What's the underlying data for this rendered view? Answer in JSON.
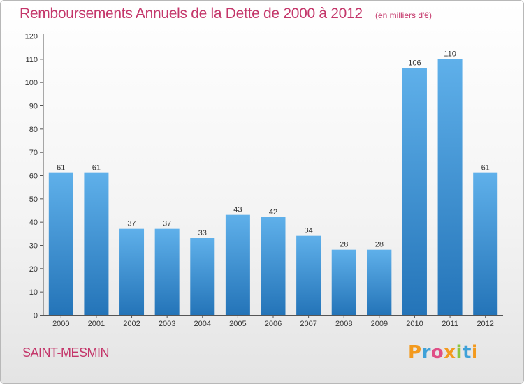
{
  "chart_data": {
    "type": "bar",
    "title": "Remboursements Annuels de la Dette de 2000 à 2012",
    "subtitle": "(en milliers d'€)",
    "categories": [
      "2000",
      "2001",
      "2002",
      "2003",
      "2004",
      "2005",
      "2006",
      "2007",
      "2008",
      "2009",
      "2010",
      "2011",
      "2012"
    ],
    "values": [
      61,
      61,
      37,
      37,
      33,
      43,
      42,
      34,
      28,
      28,
      106,
      110,
      61
    ],
    "xlabel": "",
    "ylabel": "",
    "ylim": [
      0,
      120
    ],
    "yticks": [
      0,
      10,
      20,
      30,
      40,
      50,
      60,
      70,
      80,
      90,
      100,
      110,
      120
    ],
    "grid": false,
    "legend": "none"
  },
  "footer": {
    "commune": "SAINT-MESMIN",
    "brand_letters": [
      {
        "char": "P",
        "color": "#f39a1e"
      },
      {
        "char": "r",
        "color": "#3fa1d8"
      },
      {
        "char": "o",
        "color": "#e04f86"
      },
      {
        "char": "x",
        "color": "#f39a1e"
      },
      {
        "char": "i",
        "color": "#8cc63e"
      },
      {
        "char": "t",
        "color": "#3fa1d8"
      },
      {
        "char": "i",
        "color": "#f39a1e"
      }
    ]
  },
  "colors": {
    "bar_light": "#5fb0ea",
    "bar_dark": "#2474b8",
    "title": "#c4366a"
  }
}
